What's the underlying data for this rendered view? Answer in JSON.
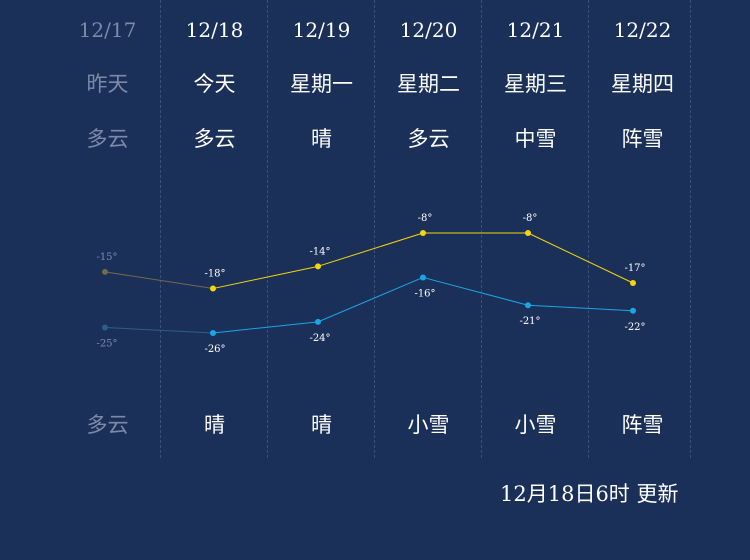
{
  "forecast": [
    {
      "date": "12/17",
      "day": "昨天",
      "weather_day": "多云",
      "weather_night": "多云",
      "high": "-15°",
      "low": "-25°"
    },
    {
      "date": "12/18",
      "day": "今天",
      "weather_day": "多云",
      "weather_night": "晴",
      "high": "-18°",
      "low": "-26°"
    },
    {
      "date": "12/19",
      "day": "星期一",
      "weather_day": "晴",
      "weather_night": "晴",
      "high": "-14°",
      "low": "-24°"
    },
    {
      "date": "12/20",
      "day": "星期二",
      "weather_day": "多云",
      "weather_night": "小雪",
      "high": "-8°",
      "low": "-16°"
    },
    {
      "date": "12/21",
      "day": "星期三",
      "weather_day": "中雪",
      "weather_night": "小雪",
      "high": "-8°",
      "low": "-21°"
    },
    {
      "date": "12/22",
      "day": "星期四",
      "weather_day": "阵雪",
      "weather_night": "阵雪",
      "high": "-17°",
      "low": "-22°"
    }
  ],
  "chart_data": {
    "type": "line",
    "categories": [
      "12/17",
      "12/18",
      "12/19",
      "12/20",
      "12/21",
      "12/22"
    ],
    "series": [
      {
        "values": [
          -15,
          -18,
          -14,
          -8,
          -8,
          -17
        ]
      },
      {
        "values": [
          -25,
          -26,
          -24,
          -16,
          -21,
          -22
        ]
      }
    ],
    "colors": {
      "high": "#f5d60a",
      "low": "#1aa6e6",
      "past_high": "#6e6a4a",
      "past_low": "#2a5f8a"
    }
  },
  "update_text": "12月18日6时 更新"
}
